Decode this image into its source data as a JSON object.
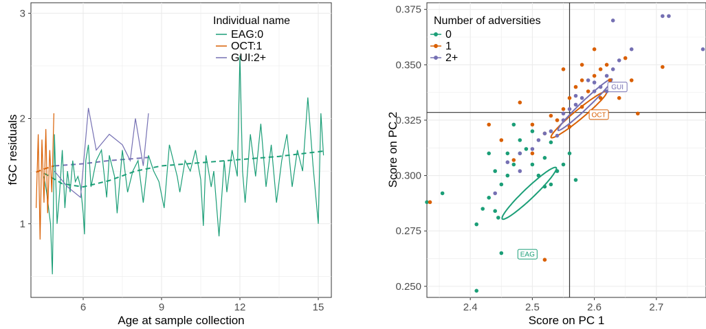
{
  "colors": {
    "c0": "#1b9e77",
    "c1": "#d95f02",
    "c2": "#7570b3",
    "grid": "#ebebeb",
    "frame": "#333333",
    "refline": "#333333"
  },
  "chart_data": [
    {
      "type": "line",
      "xlabel": "Age at sample collection",
      "ylabel": "fGC residuals",
      "xlim": [
        4.0,
        15.5
      ],
      "ylim": [
        0.3,
        3.1
      ],
      "xticks": [
        6,
        9,
        12,
        15
      ],
      "yticks": [
        1,
        2,
        3
      ],
      "grid": true,
      "legend_title": "Individual name",
      "legend_position": "top-right",
      "series": [
        {
          "name": "EAG:0",
          "group": "c0",
          "x": [
            4.5,
            4.6,
            4.75,
            4.82,
            4.9,
            5.0,
            5.1,
            5.2,
            5.3,
            5.4,
            5.5,
            5.6,
            5.7,
            5.8,
            5.9,
            6.0,
            6.05,
            6.1,
            6.2,
            6.3,
            6.5,
            6.7,
            6.9,
            7.0,
            7.2,
            7.3,
            7.5,
            7.7,
            7.9,
            8.1,
            8.3,
            8.5,
            8.7,
            8.9,
            9.1,
            9.3,
            9.5,
            9.6,
            9.7,
            9.9,
            10.1,
            10.3,
            10.5,
            10.6,
            10.7,
            10.9,
            11.0,
            11.2,
            11.4,
            11.5,
            11.7,
            11.9,
            12.0,
            12.1,
            12.2,
            12.4,
            12.6,
            12.8,
            13.0,
            13.2,
            13.4,
            13.6,
            13.8,
            14.0,
            14.2,
            14.4,
            14.6,
            14.8,
            15.0,
            15.1,
            15.2
          ],
          "y": [
            1.45,
            1.3,
            1.0,
            0.52,
            1.85,
            1.0,
            1.3,
            1.7,
            1.15,
            1.5,
            1.3,
            1.6,
            1.4,
            1.45,
            1.35,
            1.1,
            0.9,
            1.6,
            1.75,
            1.35,
            1.6,
            1.7,
            1.25,
            1.65,
            1.45,
            1.1,
            1.7,
            1.3,
            1.5,
            1.6,
            1.2,
            1.65,
            1.5,
            1.4,
            1.15,
            1.75,
            1.55,
            1.45,
            1.3,
            1.6,
            1.5,
            1.7,
            1.42,
            0.98,
            1.65,
            1.35,
            1.5,
            0.88,
            1.6,
            1.3,
            1.7,
            1.45,
            2.6,
            1.5,
            1.2,
            1.85,
            1.45,
            1.95,
            1.35,
            1.75,
            1.2,
            1.6,
            1.85,
            1.35,
            1.7,
            1.5,
            2.2,
            1.55,
            1.0,
            2.05,
            1.65
          ]
        },
        {
          "name": "OCT:1",
          "group": "c1",
          "x": [
            4.2,
            4.28,
            4.35,
            4.42,
            4.5,
            4.57,
            4.64,
            4.72,
            4.8,
            4.88
          ],
          "y": [
            1.15,
            1.85,
            0.85,
            1.8,
            1.2,
            1.9,
            1.1,
            1.7,
            1.3,
            2.05
          ]
        },
        {
          "name": "GUI:2+",
          "group": "c2",
          "x": [
            4.9,
            5.4,
            5.9,
            6.2,
            6.5,
            7.0,
            7.5,
            7.8,
            8.0,
            8.3,
            8.5
          ],
          "y": [
            1.5,
            1.35,
            1.25,
            2.1,
            1.7,
            1.85,
            1.75,
            1.6,
            2.0,
            1.55,
            2.05
          ]
        }
      ],
      "trend_lines": [
        {
          "group": "c0",
          "x": [
            4.5,
            5.2,
            6.0,
            7.0,
            8.0,
            9.0,
            10.5,
            12.0,
            13.5,
            15.2
          ],
          "y": [
            1.48,
            1.38,
            1.35,
            1.41,
            1.5,
            1.55,
            1.58,
            1.61,
            1.64,
            1.69
          ]
        },
        {
          "group": "c1",
          "x": [
            4.2,
            4.5,
            4.88
          ],
          "y": [
            1.49,
            1.52,
            1.55
          ]
        },
        {
          "group": "c2",
          "x": [
            4.9,
            6.0,
            7.0,
            8.0,
            8.5
          ],
          "y": [
            1.55,
            1.57,
            1.6,
            1.62,
            1.63
          ]
        }
      ]
    },
    {
      "type": "scatter",
      "xlabel": "Score on PC 1",
      "ylabel": "Score on PC 2",
      "xlim": [
        2.33,
        2.78
      ],
      "ylim": [
        0.245,
        0.378
      ],
      "xticks": [
        2.4,
        2.5,
        2.6,
        2.7
      ],
      "yticks": [
        0.25,
        0.275,
        0.3,
        0.325,
        0.35,
        0.375
      ],
      "xtick_labels": [
        "2.4",
        "2.5",
        "2.6",
        "2.7"
      ],
      "ytick_labels": [
        "0.250",
        "0.275",
        "0.300",
        "0.325",
        "0.350",
        "0.375"
      ],
      "grid": true,
      "legend_title": "Number of adversities",
      "legend_position": "top-left",
      "reference_lines": {
        "x": 2.56,
        "y": 0.3285
      },
      "series": [
        {
          "name": "0",
          "group": "c0",
          "points": [
            [
              2.41,
              0.278
            ],
            [
              2.42,
              0.285
            ],
            [
              2.43,
              0.29
            ],
            [
              2.44,
              0.284
            ],
            [
              2.445,
              0.281
            ],
            [
              2.45,
              0.296
            ],
            [
              2.46,
              0.3
            ],
            [
              2.47,
              0.305
            ],
            [
              2.48,
              0.31
            ],
            [
              2.49,
              0.312
            ],
            [
              2.5,
              0.32
            ],
            [
              2.51,
              0.3
            ],
            [
              2.52,
              0.308
            ],
            [
              2.53,
              0.296
            ],
            [
              2.55,
              0.305
            ],
            [
              2.57,
              0.298
            ],
            [
              2.54,
              0.302
            ],
            [
              2.46,
              0.31
            ],
            [
              2.43,
              0.31
            ],
            [
              2.355,
              0.292
            ],
            [
              2.33,
              0.288
            ],
            [
              2.45,
              0.265
            ],
            [
              2.41,
              0.248
            ],
            [
              2.52,
              0.295
            ],
            [
              2.48,
              0.316
            ],
            [
              2.47,
              0.323
            ],
            [
              2.56,
              0.31
            ],
            [
              2.53,
              0.315
            ],
            [
              2.5,
              0.305
            ],
            [
              2.44,
              0.302
            ]
          ]
        },
        {
          "name": "1",
          "group": "c1",
          "points": [
            [
              2.335,
              0.288
            ],
            [
              2.43,
              0.323
            ],
            [
              2.45,
              0.316
            ],
            [
              2.48,
              0.333
            ],
            [
              2.5,
              0.31
            ],
            [
              2.52,
              0.319
            ],
            [
              2.53,
              0.327
            ],
            [
              2.55,
              0.33
            ],
            [
              2.56,
              0.335
            ],
            [
              2.57,
              0.34
            ],
            [
              2.58,
              0.343
            ],
            [
              2.59,
              0.338
            ],
            [
              2.6,
              0.345
            ],
            [
              2.61,
              0.348
            ],
            [
              2.62,
              0.35
            ],
            [
              2.63,
              0.34
            ],
            [
              2.64,
              0.335
            ],
            [
              2.65,
              0.353
            ],
            [
              2.67,
              0.328
            ],
            [
              2.71,
              0.349
            ],
            [
              2.52,
              0.262
            ],
            [
              2.58,
              0.331
            ],
            [
              2.54,
              0.325
            ],
            [
              2.6,
              0.357
            ],
            [
              2.625,
              0.343
            ],
            [
              2.5,
              0.323
            ],
            [
              2.47,
              0.307
            ],
            [
              2.56,
              0.322
            ],
            [
              2.58,
              0.35
            ],
            [
              2.61,
              0.335
            ],
            [
              2.66,
              0.343
            ],
            [
              2.55,
              0.348
            ]
          ]
        },
        {
          "name": "2+",
          "group": "c2",
          "points": [
            [
              2.44,
              0.292
            ],
            [
              2.46,
              0.306
            ],
            [
              2.48,
              0.31
            ],
            [
              2.5,
              0.312
            ],
            [
              2.52,
              0.319
            ],
            [
              2.53,
              0.32
            ],
            [
              2.55,
              0.325
            ],
            [
              2.56,
              0.33
            ],
            [
              2.57,
              0.332
            ],
            [
              2.58,
              0.335
            ],
            [
              2.6,
              0.338
            ],
            [
              2.61,
              0.34
            ],
            [
              2.62,
              0.345
            ],
            [
              2.63,
              0.348
            ],
            [
              2.64,
              0.352
            ],
            [
              2.66,
              0.357
            ],
            [
              2.63,
              0.37
            ],
            [
              2.71,
              0.372
            ],
            [
              2.72,
              0.372
            ],
            [
              2.775,
              0.357
            ],
            [
              2.59,
              0.343
            ],
            [
              2.57,
              0.336
            ],
            [
              2.54,
              0.318
            ],
            [
              2.51,
              0.316
            ],
            [
              2.6,
              0.342
            ],
            [
              2.48,
              0.302
            ],
            [
              2.55,
              0.328
            ],
            [
              2.62,
              0.338
            ]
          ]
        }
      ],
      "ellipses": [
        {
          "group": "c0",
          "cx": 2.495,
          "cy": 0.292,
          "a": 0.13,
          "b": 0.0185,
          "angle_deg": 42
        },
        {
          "group": "c1",
          "cx": 2.575,
          "cy": 0.3275,
          "a": 0.126,
          "b": 0.016,
          "angle_deg": 38
        },
        {
          "group": "c2",
          "cx": 2.585,
          "cy": 0.332,
          "a": 0.13,
          "b": 0.0135,
          "angle_deg": 42
        }
      ],
      "centroid_labels": [
        {
          "text": "EAG",
          "group": "c0",
          "x": 2.48,
          "y": 0.2645
        },
        {
          "text": "OCT",
          "group": "c1",
          "x": 2.595,
          "y": 0.3275
        },
        {
          "text": "GUI",
          "group": "c2",
          "x": 2.625,
          "y": 0.34
        }
      ]
    }
  ]
}
